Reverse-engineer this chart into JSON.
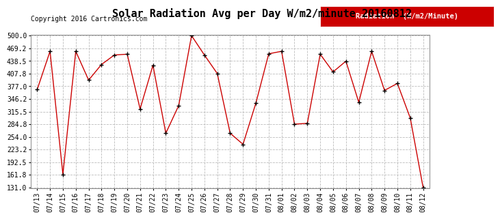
{
  "title": "Solar Radiation Avg per Day W/m2/minute 20160812",
  "copyright": "Copyright 2016 Cartronics.com",
  "legend_label": "Radiation  (W/m2/Minute)",
  "dates": [
    "07/13",
    "07/14",
    "07/15",
    "07/16",
    "07/17",
    "07/18",
    "07/19",
    "07/20",
    "07/21",
    "07/22",
    "07/23",
    "07/24",
    "07/25",
    "07/26",
    "07/27",
    "07/28",
    "07/29",
    "07/30",
    "07/31",
    "08/01",
    "08/02",
    "08/03",
    "08/04",
    "08/05",
    "08/06",
    "08/07",
    "08/08",
    "08/09",
    "08/10",
    "08/11",
    "08/12"
  ],
  "values": [
    369,
    462,
    163,
    462,
    392,
    430,
    453,
    455,
    322,
    428,
    263,
    330,
    500,
    453,
    408,
    263,
    236,
    336,
    456,
    462,
    285,
    287,
    455,
    412,
    438,
    338,
    462,
    367,
    384,
    300,
    131
  ],
  "yticks": [
    500.0,
    469.2,
    438.5,
    407.8,
    377.0,
    346.2,
    315.5,
    284.8,
    254.0,
    223.2,
    192.5,
    161.8,
    131.0
  ],
  "line_color": "#cc0000",
  "marker": "+",
  "marker_color": "#000000",
  "bg_color": "#ffffff",
  "grid_color": "#bbbbbb",
  "title_fontsize": 11,
  "copyright_fontsize": 7,
  "tick_fontsize": 7,
  "legend_bg": "#cc0000",
  "legend_text_color": "#ffffff",
  "legend_fontsize": 7.5
}
